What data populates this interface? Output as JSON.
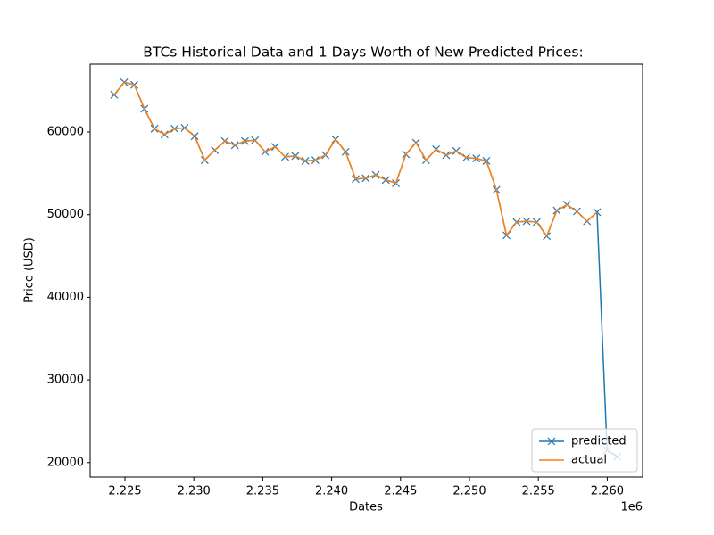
{
  "chart_data": {
    "type": "line",
    "title": "BTCs Historical Data and 1 Days Worth of New Predicted Prices:",
    "x_label": "Dates",
    "y_label": "Price (USD)",
    "x_offset_label": "1e6",
    "x": [
      2224220,
      2224950,
      2225680,
      2226410,
      2227140,
      2227870,
      2228600,
      2229330,
      2230060,
      2230790,
      2231520,
      2232250,
      2232980,
      2233710,
      2234440,
      2235170,
      2235900,
      2236630,
      2237360,
      2238090,
      2238820,
      2239550,
      2240280,
      2241010,
      2241740,
      2242470,
      2243200,
      2243930,
      2244660,
      2245390,
      2246120,
      2246850,
      2247580,
      2248310,
      2249040,
      2249770,
      2250500,
      2251230,
      2251960,
      2252690,
      2253420,
      2254150,
      2254880,
      2255610,
      2256340,
      2257070,
      2257800,
      2258530,
      2259260,
      2259990,
      2260720
    ],
    "series": [
      {
        "name": "predicted",
        "color": "#1f77b4",
        "marker": "x",
        "values": [
          64500,
          66000,
          65700,
          62800,
          60400,
          59700,
          60400,
          60500,
          59500,
          56600,
          57800,
          58900,
          58400,
          58900,
          59000,
          57600,
          58200,
          57000,
          57100,
          56500,
          56600,
          57200,
          59100,
          57600,
          54300,
          54400,
          54800,
          54200,
          53800,
          57300,
          58700,
          56600,
          57900,
          57200,
          57700,
          56900,
          56800,
          56500,
          53000,
          47500,
          49100,
          49200,
          49100,
          47400,
          50500,
          51200,
          50400,
          49200,
          50300,
          21500,
          20700
        ]
      },
      {
        "name": "actual",
        "color": "#ff7f0e",
        "values": [
          64500,
          66000,
          65700,
          62800,
          60400,
          59700,
          60400,
          60500,
          59500,
          56600,
          57800,
          58900,
          58400,
          58900,
          59000,
          57600,
          58200,
          57000,
          57100,
          56500,
          56600,
          57200,
          59100,
          57600,
          54300,
          54400,
          54800,
          54200,
          53800,
          57300,
          58700,
          56600,
          57900,
          57200,
          57700,
          56900,
          56800,
          56500,
          53000,
          47500,
          49100,
          49200,
          49100,
          47400,
          50500,
          51200,
          50400,
          49200,
          50300,
          null,
          null
        ]
      }
    ],
    "xlim": [
      2222474,
      2262565
    ],
    "xticks": [
      {
        "value": 2225000,
        "label": "2.225"
      },
      {
        "value": 2230000,
        "label": "2.230"
      },
      {
        "value": 2235000,
        "label": "2.235"
      },
      {
        "value": 2240000,
        "label": "2.240"
      },
      {
        "value": 2245000,
        "label": "2.245"
      },
      {
        "value": 2250000,
        "label": "2.250"
      },
      {
        "value": 2255000,
        "label": "2.255"
      },
      {
        "value": 2260000,
        "label": "2.260"
      }
    ],
    "ylim": [
      18250,
      68200
    ],
    "yticks": [
      20000,
      30000,
      40000,
      50000,
      60000
    ],
    "grid": false,
    "legend": "lower right"
  }
}
